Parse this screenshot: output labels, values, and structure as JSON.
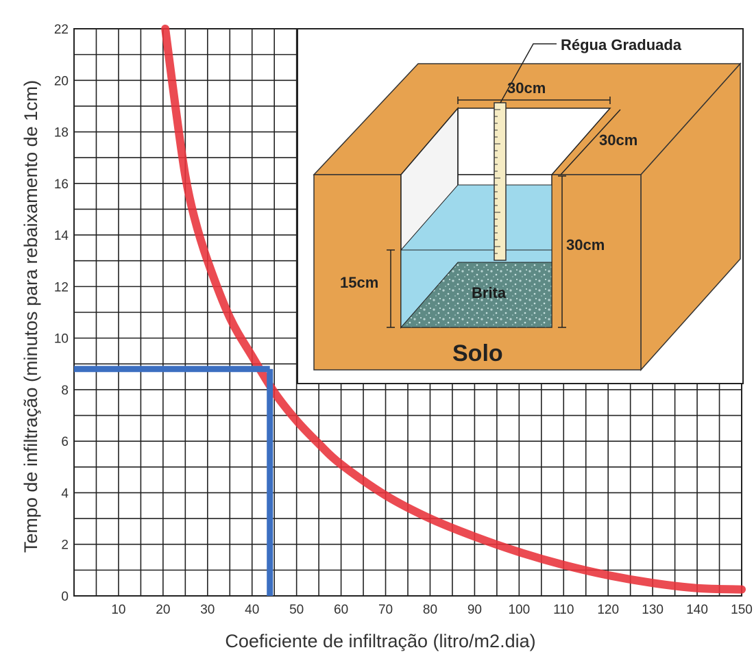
{
  "chart_data": {
    "type": "line",
    "xlabel": "Coeficiente de infiltração (litro/m2.dia)",
    "ylabel": "Tempo de infiltração (minutos para rebaixamento de 1cm)",
    "xlim": [
      0,
      150
    ],
    "ylim": [
      0,
      22
    ],
    "x_ticks": [
      10,
      20,
      30,
      40,
      50,
      60,
      70,
      80,
      90,
      100,
      110,
      120,
      130,
      140,
      150
    ],
    "y_ticks": [
      0,
      2,
      4,
      6,
      8,
      10,
      12,
      14,
      16,
      18,
      20,
      22
    ],
    "grid": true,
    "series": [
      {
        "color": "#e8323a",
        "x": [
          20.5,
          23,
          25,
          27,
          30,
          35,
          40,
          45,
          50,
          55,
          60,
          70,
          80,
          90,
          100,
          110,
          120,
          130,
          140,
          150
        ],
        "y": [
          22,
          18.7,
          16.3,
          14.7,
          13,
          10.8,
          9.3,
          7.9,
          6.8,
          5.9,
          5.1,
          3.9,
          3.0,
          2.3,
          1.7,
          1.2,
          0.8,
          0.5,
          0.3,
          0.25
        ]
      }
    ],
    "reference_lines": {
      "color": "#3c6fc1",
      "x": 44,
      "y": 8.8
    }
  },
  "diagram": {
    "ruler_label": "Régua Graduada",
    "top_width": "30cm",
    "side_width": "30cm",
    "depth": "30cm",
    "gravel_height": "15cm",
    "gravel_label": "Brita",
    "soil_label": "Solo",
    "colors": {
      "soil": "#e7a24f",
      "water": "#9ed9ec",
      "gravel": "#5e8a85",
      "ruler": "#f6ecc4"
    }
  }
}
